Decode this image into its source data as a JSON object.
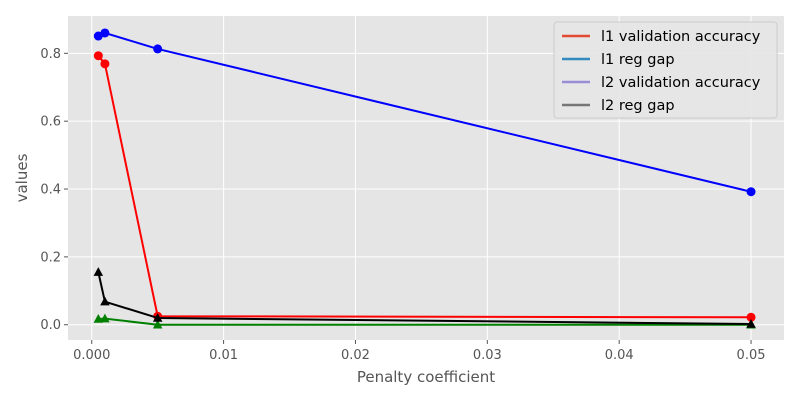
{
  "chart_data": {
    "type": "line",
    "style": "ggplot",
    "grid": true,
    "legend_position": "top-right",
    "xlabel": "Penalty coefficient",
    "ylabel": "values",
    "xlim": [
      -0.0018,
      0.0525
    ],
    "ylim": [
      -0.045,
      0.91
    ],
    "x_ticks": [
      0.0,
      0.01,
      0.02,
      0.03,
      0.04,
      0.05
    ],
    "x_tick_labels": [
      "0.000",
      "0.01",
      "0.02",
      "0.03",
      "0.04",
      "0.05"
    ],
    "y_ticks": [
      0.0,
      0.2,
      0.4,
      0.6,
      0.8
    ],
    "y_tick_labels": [
      "0.0",
      "0.2",
      "0.4",
      "0.6",
      "0.8"
    ],
    "legend": [
      {
        "label": "l1 validation accuracy",
        "color": "#E24A33"
      },
      {
        "label": "l1 reg gap",
        "color": "#348ABD"
      },
      {
        "label": "l2 validation accuracy",
        "color": "#988ED5"
      },
      {
        "label": "l2 reg gap",
        "color": "#777777"
      }
    ],
    "series": [
      {
        "color": "#0000FF",
        "marker": "circle",
        "x": [
          0.0005,
          0.001,
          0.005,
          0.05
        ],
        "y": [
          0.851,
          0.86,
          0.813,
          0.392
        ]
      },
      {
        "color": "#FF0000",
        "marker": "circle",
        "x": [
          0.0005,
          0.001,
          0.005,
          0.05
        ],
        "y": [
          0.793,
          0.769,
          0.025,
          0.022
        ]
      },
      {
        "color": "#008000",
        "marker": "triangle",
        "x": [
          0.0005,
          0.001,
          0.005,
          0.05
        ],
        "y": [
          0.017,
          0.018,
          0.0,
          0.0
        ]
      },
      {
        "color": "#000000",
        "marker": "triangle",
        "x": [
          0.0005,
          0.001,
          0.005,
          0.05
        ],
        "y": [
          0.155,
          0.068,
          0.02,
          0.002
        ]
      }
    ]
  }
}
